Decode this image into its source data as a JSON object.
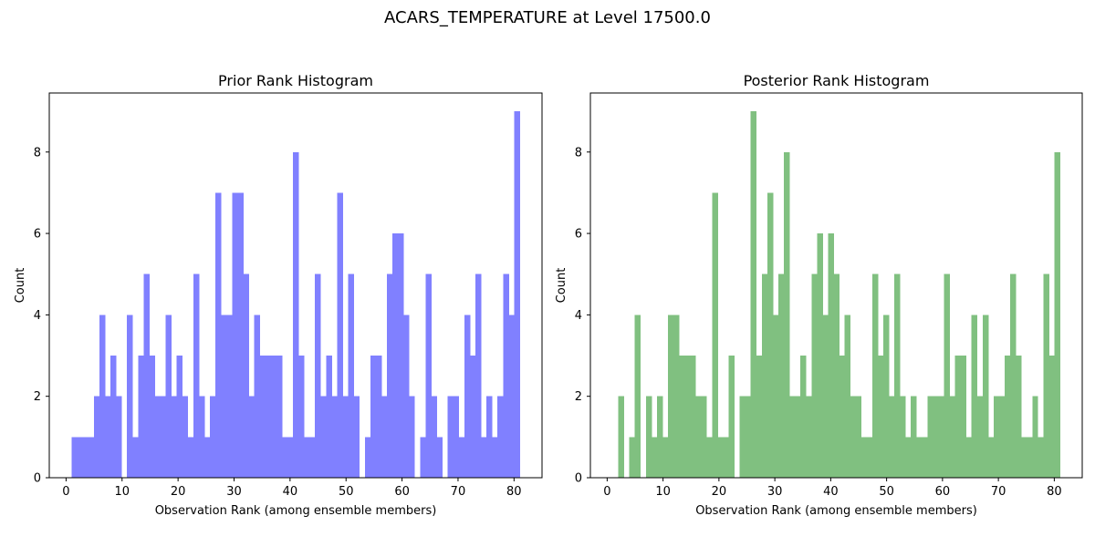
{
  "suptitle": "ACARS_TEMPERATURE at Level 17500.0",
  "chart_data": [
    {
      "type": "bar",
      "title": "Prior Rank Histogram",
      "xlabel": "Observation Rank (among ensemble members)",
      "ylabel": "Count",
      "color": "#8080ff",
      "xlim": [
        -3,
        85
      ],
      "ylim": [
        0,
        9.45
      ],
      "xticks": [
        0,
        10,
        20,
        30,
        40,
        50,
        60,
        70,
        80
      ],
      "yticks": [
        0,
        2,
        4,
        6,
        8
      ],
      "bin_start": 1,
      "bin_width": 0.9877,
      "grid": false,
      "values": [
        1,
        1,
        1,
        1,
        2,
        4,
        2,
        3,
        2,
        0,
        4,
        1,
        3,
        5,
        3,
        2,
        2,
        4,
        2,
        3,
        2,
        1,
        5,
        2,
        1,
        2,
        7,
        4,
        4,
        7,
        7,
        5,
        2,
        4,
        3,
        3,
        3,
        3,
        1,
        1,
        8,
        3,
        1,
        1,
        5,
        2,
        3,
        2,
        7,
        2,
        5,
        2,
        0,
        1,
        3,
        3,
        2,
        5,
        6,
        6,
        4,
        2,
        0,
        1,
        5,
        2,
        1,
        0,
        2,
        2,
        1,
        4,
        3,
        5,
        1,
        2,
        1,
        2,
        5,
        4,
        9
      ]
    },
    {
      "type": "bar",
      "title": "Posterior Rank Histogram",
      "xlabel": "Observation Rank (among ensemble members)",
      "ylabel": "Count",
      "color": "#80c080",
      "xlim": [
        -3,
        85
      ],
      "ylim": [
        0,
        9.45
      ],
      "xticks": [
        0,
        10,
        20,
        30,
        40,
        50,
        60,
        70,
        80
      ],
      "yticks": [
        0,
        2,
        4,
        6,
        8
      ],
      "bin_start": 1,
      "bin_width": 0.9877,
      "grid": false,
      "values": [
        0,
        2,
        0,
        1,
        4,
        0,
        2,
        1,
        2,
        1,
        4,
        4,
        3,
        3,
        3,
        2,
        2,
        1,
        7,
        1,
        1,
        3,
        0,
        2,
        2,
        9,
        3,
        5,
        7,
        4,
        5,
        8,
        2,
        2,
        3,
        2,
        5,
        6,
        4,
        6,
        5,
        3,
        4,
        2,
        2,
        1,
        1,
        5,
        3,
        4,
        2,
        5,
        2,
        1,
        2,
        1,
        1,
        2,
        2,
        2,
        5,
        2,
        3,
        3,
        1,
        4,
        2,
        4,
        1,
        2,
        2,
        3,
        5,
        3,
        1,
        1,
        2,
        1,
        5,
        3,
        8
      ]
    }
  ]
}
